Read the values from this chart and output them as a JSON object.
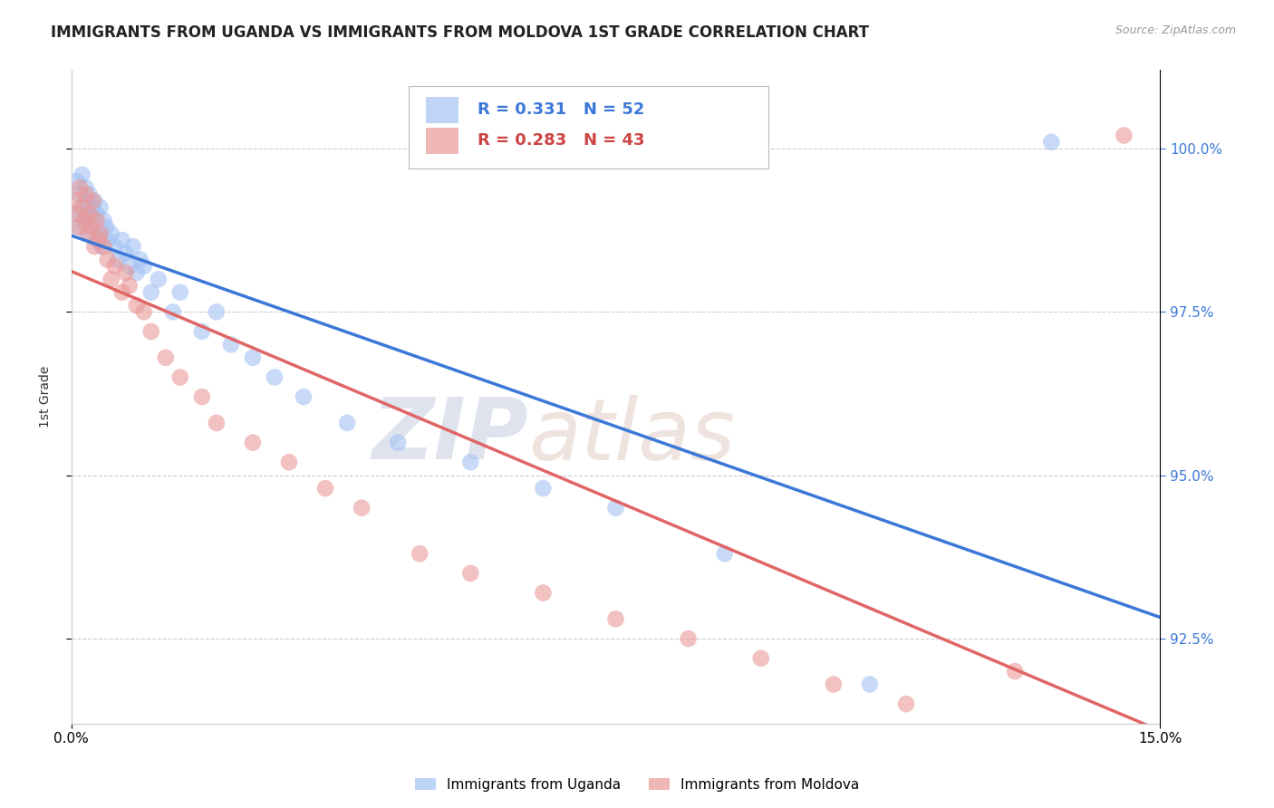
{
  "title": "IMMIGRANTS FROM UGANDA VS IMMIGRANTS FROM MOLDOVA 1ST GRADE CORRELATION CHART",
  "source_text": "Source: ZipAtlas.com",
  "ylabel": "1st Grade",
  "xlim": [
    0.0,
    15.0
  ],
  "ylim": [
    91.2,
    101.2
  ],
  "ytick_values": [
    92.5,
    95.0,
    97.5,
    100.0
  ],
  "ytick_labels": [
    "92.5%",
    "95.0%",
    "97.5%",
    "100.0%"
  ],
  "uganda_color": "#a4c2f4",
  "moldova_color": "#ea9999",
  "line_uganda_color": "#3c78d8",
  "line_moldova_color": "#e06666",
  "uganda_R": 0.331,
  "uganda_N": 52,
  "moldova_R": 0.283,
  "moldova_N": 43,
  "watermark_zip": "ZIP",
  "watermark_atlas": "atlas",
  "legend_uganda": "Immigrants from Uganda",
  "legend_moldova": "Immigrants from Moldova",
  "uganda_x": [
    0.05,
    0.08,
    0.1,
    0.12,
    0.15,
    0.15,
    0.18,
    0.2,
    0.2,
    0.22,
    0.25,
    0.25,
    0.28,
    0.3,
    0.3,
    0.32,
    0.35,
    0.35,
    0.38,
    0.4,
    0.42,
    0.45,
    0.48,
    0.5,
    0.55,
    0.6,
    0.65,
    0.7,
    0.75,
    0.8,
    0.85,
    0.9,
    0.95,
    1.0,
    1.1,
    1.2,
    1.4,
    1.5,
    1.8,
    2.0,
    2.2,
    2.5,
    2.8,
    3.2,
    3.8,
    4.5,
    5.5,
    6.5,
    7.5,
    9.0,
    11.0,
    13.5
  ],
  "uganda_y": [
    99.0,
    99.5,
    98.8,
    99.3,
    99.1,
    99.6,
    98.9,
    99.4,
    99.0,
    99.2,
    98.7,
    99.3,
    99.0,
    98.8,
    99.1,
    99.2,
    98.6,
    99.0,
    98.7,
    99.1,
    98.5,
    98.9,
    98.8,
    98.6,
    98.7,
    98.5,
    98.3,
    98.6,
    98.4,
    98.2,
    98.5,
    98.1,
    98.3,
    98.2,
    97.8,
    98.0,
    97.5,
    97.8,
    97.2,
    97.5,
    97.0,
    96.8,
    96.5,
    96.2,
    95.8,
    95.5,
    95.2,
    94.8,
    94.5,
    93.8,
    91.8,
    100.1
  ],
  "moldova_x": [
    0.05,
    0.08,
    0.1,
    0.12,
    0.15,
    0.18,
    0.2,
    0.22,
    0.25,
    0.28,
    0.3,
    0.32,
    0.35,
    0.38,
    0.4,
    0.45,
    0.5,
    0.55,
    0.6,
    0.7,
    0.75,
    0.8,
    0.9,
    1.0,
    1.1,
    1.3,
    1.5,
    1.8,
    2.0,
    2.5,
    3.0,
    3.5,
    4.0,
    4.8,
    5.5,
    6.5,
    7.5,
    8.5,
    9.5,
    10.5,
    11.5,
    13.0,
    14.5
  ],
  "moldova_y": [
    99.2,
    99.0,
    98.8,
    99.4,
    99.1,
    98.9,
    99.3,
    98.7,
    99.0,
    98.8,
    99.2,
    98.5,
    98.9,
    98.6,
    98.7,
    98.5,
    98.3,
    98.0,
    98.2,
    97.8,
    98.1,
    97.9,
    97.6,
    97.5,
    97.2,
    96.8,
    96.5,
    96.2,
    95.8,
    95.5,
    95.2,
    94.8,
    94.5,
    93.8,
    93.5,
    93.2,
    92.8,
    92.5,
    92.2,
    91.8,
    91.5,
    92.0,
    100.2
  ]
}
